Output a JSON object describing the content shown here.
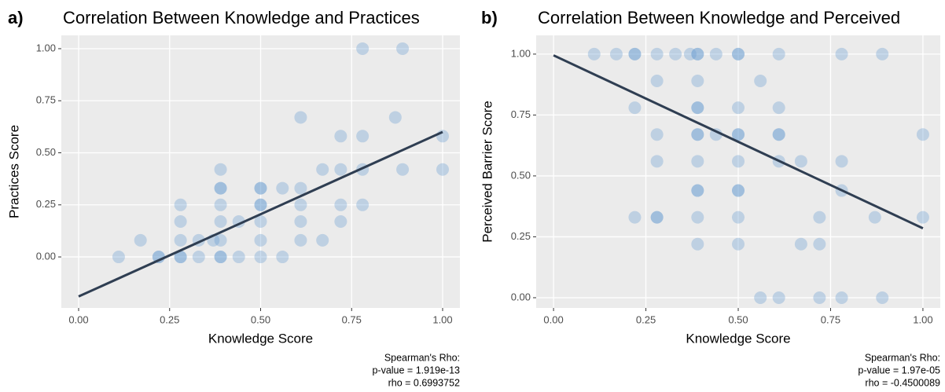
{
  "chart_data": [
    {
      "type": "scatter",
      "panel_label": "a)",
      "title": "Correlation Between Knowledge and Practices",
      "x_label": "Knowledge Score",
      "y_label": "Practices Score",
      "annotation": [
        "Spearman's Rho:",
        "p-value = 1.919e-13",
        "rho = 0.6993752"
      ],
      "color": "#6b9fd0",
      "line_color": "#2f3e52",
      "x": [
        0.11,
        0.17,
        0.22,
        0.22,
        0.28,
        0.28,
        0.28,
        0.28,
        0.28,
        0.33,
        0.33,
        0.37,
        0.39,
        0.39,
        0.39,
        0.39,
        0.39,
        0.39,
        0.39,
        0.39,
        0.44,
        0.44,
        0.5,
        0.5,
        0.5,
        0.5,
        0.5,
        0.5,
        0.5,
        0.56,
        0.56,
        0.61,
        0.61,
        0.61,
        0.61,
        0.61,
        0.67,
        0.67,
        0.72,
        0.72,
        0.72,
        0.72,
        0.78,
        0.78,
        0.78,
        0.78,
        0.87,
        0.89,
        0.89,
        1.0,
        1.0
      ],
      "y": [
        0,
        0.08,
        0,
        0,
        0,
        0,
        0.08,
        0.17,
        0.25,
        0,
        0.08,
        0.08,
        0,
        0,
        0.08,
        0.17,
        0.25,
        0.33,
        0.33,
        0.42,
        0,
        0.17,
        0,
        0.08,
        0.17,
        0.25,
        0.25,
        0.33,
        0.33,
        0,
        0.33,
        0.08,
        0.17,
        0.25,
        0.33,
        0.67,
        0.08,
        0.42,
        0.17,
        0.25,
        0.42,
        0.58,
        0.25,
        0.42,
        0.58,
        1.0,
        0.67,
        0.42,
        1.0,
        0.42,
        0.58
      ],
      "trend_line": {
        "x": [
          0,
          1
        ],
        "y": [
          -0.19,
          0.6
        ]
      },
      "xlim": [
        -0.0475,
        1.0475
      ],
      "ylim": [
        -0.245,
        1.064
      ],
      "xticks": [
        {
          "value": 0,
          "label": "0.00"
        },
        {
          "value": 0.25,
          "label": "0.25"
        },
        {
          "value": 0.5,
          "label": "0.50"
        },
        {
          "value": 0.75,
          "label": "0.75"
        },
        {
          "value": 1,
          "label": "1.00"
        }
      ],
      "yticks": [
        {
          "value": 0,
          "label": "0.00"
        },
        {
          "value": 0.25,
          "label": "0.25"
        },
        {
          "value": 0.5,
          "label": "0.50"
        },
        {
          "value": 0.75,
          "label": "0.75"
        },
        {
          "value": 1,
          "label": "1.00"
        }
      ],
      "grid": true
    },
    {
      "type": "scatter",
      "panel_label": "b)",
      "title": "Correlation Between Knowledge and Perceived",
      "x_label": "Knowledge Score",
      "y_label": "Perceived Barrier Score",
      "annotation": [
        "Spearman's Rho:",
        "p-value = 1.97e-05",
        "rho = -0.4500089"
      ],
      "color": "#6b9fd0",
      "line_color": "#2f3e52",
      "x": [
        0.11,
        0.17,
        0.22,
        0.22,
        0.28,
        0.33,
        0.37,
        0.39,
        0.39,
        0.44,
        0.5,
        0.5,
        0.61,
        0.78,
        0.89,
        0.28,
        0.39,
        0.56,
        0.22,
        0.39,
        0.39,
        0.5,
        0.61,
        0.28,
        0.39,
        0.39,
        0.44,
        0.5,
        0.5,
        0.61,
        0.61,
        1.0,
        0.28,
        0.39,
        0.5,
        0.61,
        0.67,
        0.78,
        0.39,
        0.39,
        0.5,
        0.5,
        0.78,
        0.22,
        0.28,
        0.28,
        0.39,
        0.5,
        0.72,
        0.87,
        1.0,
        0.39,
        0.5,
        0.67,
        0.72,
        0.56,
        0.61,
        0.72,
        0.78,
        0.89
      ],
      "y": [
        1,
        1,
        1,
        1,
        1,
        1,
        1,
        1,
        1,
        1,
        1,
        1,
        1,
        1,
        1,
        0.89,
        0.89,
        0.89,
        0.78,
        0.78,
        0.78,
        0.78,
        0.78,
        0.67,
        0.67,
        0.67,
        0.67,
        0.67,
        0.67,
        0.67,
        0.67,
        0.67,
        0.56,
        0.56,
        0.56,
        0.56,
        0.56,
        0.56,
        0.44,
        0.44,
        0.44,
        0.44,
        0.44,
        0.33,
        0.33,
        0.33,
        0.33,
        0.33,
        0.33,
        0.33,
        0.33,
        0.22,
        0.22,
        0.22,
        0.22,
        0,
        0,
        0,
        0,
        0
      ],
      "trend_line": {
        "x": [
          0,
          1
        ],
        "y": [
          0.995,
          0.285
        ]
      },
      "xlim": [
        -0.047,
        1.047
      ],
      "ylim": [
        -0.042,
        1.077
      ],
      "xticks": [
        {
          "value": 0,
          "label": "0.00"
        },
        {
          "value": 0.25,
          "label": "0.25"
        },
        {
          "value": 0.5,
          "label": "0.50"
        },
        {
          "value": 0.75,
          "label": "0.75"
        },
        {
          "value": 1,
          "label": "1.00"
        }
      ],
      "yticks": [
        {
          "value": 0,
          "label": "0.00"
        },
        {
          "value": 0.25,
          "label": "0.25"
        },
        {
          "value": 0.5,
          "label": "0.50"
        },
        {
          "value": 0.75,
          "label": "0.75"
        },
        {
          "value": 1,
          "label": "1.00"
        }
      ],
      "grid": true
    }
  ]
}
